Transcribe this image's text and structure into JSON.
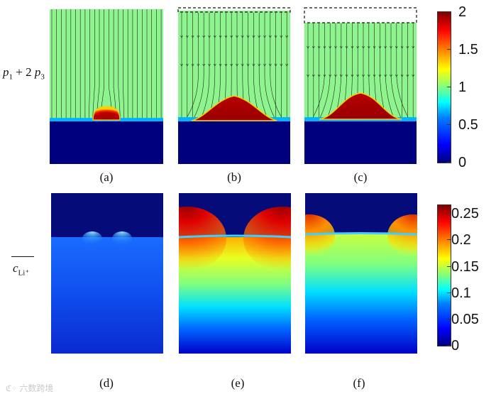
{
  "row_labels": {
    "top": {
      "var_a": "p",
      "sub_a": "1",
      "op": " + 2 ",
      "var_b": "p",
      "sub_b": "3"
    },
    "bottom": {
      "var": "c",
      "sub": "Li⁺"
    }
  },
  "captions": [
    "(a)",
    "(b)",
    "(c)",
    "(d)",
    "(e)",
    "(f)"
  ],
  "colorbar_top": {
    "ticks": [
      "2",
      "1.5",
      "1",
      "0.5",
      "0"
    ],
    "range": [
      0,
      2
    ]
  },
  "colorbar_bottom": {
    "ticks": [
      "0.25",
      "0.2",
      "0.15",
      "0.1",
      "0.05",
      "0"
    ],
    "range": [
      0,
      0.27
    ]
  },
  "watermark": "六数跨境"
}
